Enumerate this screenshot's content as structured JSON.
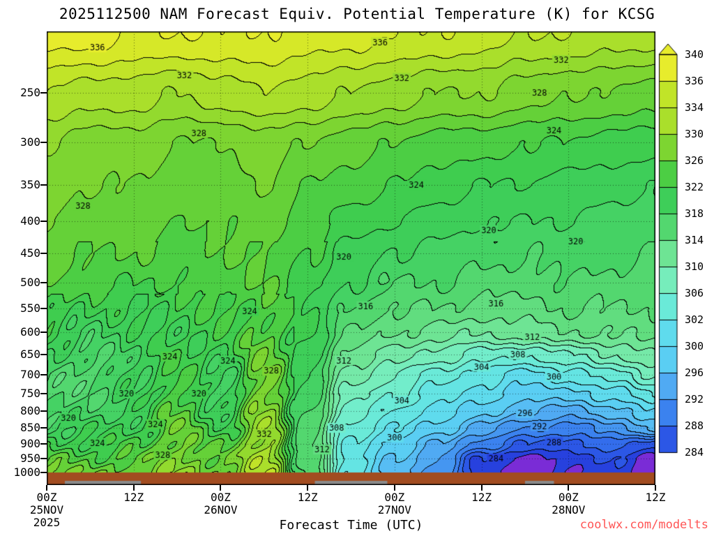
{
  "title": "2025112500 NAM Forecast Equiv. Potential Temperature (K) for KCSG",
  "watermark": "coolwx.com/modelts",
  "watermark_color": "#ff5555",
  "axes": {
    "x_label": "Forecast Time (UTC)",
    "x_ticks": [
      {
        "hour": 0,
        "line1": "00Z",
        "line2": "25NOV",
        "line3": "2025"
      },
      {
        "hour": 12,
        "line1": "12Z"
      },
      {
        "hour": 24,
        "line1": "00Z",
        "line2": "26NOV"
      },
      {
        "hour": 36,
        "line1": "12Z"
      },
      {
        "hour": 48,
        "line1": "00Z",
        "line2": "27NOV"
      },
      {
        "hour": 60,
        "line1": "12Z"
      },
      {
        "hour": 72,
        "line1": "00Z",
        "line2": "28NOV"
      },
      {
        "hour": 84,
        "line1": "12Z"
      }
    ],
    "y_ticks": [
      250,
      300,
      350,
      400,
      450,
      500,
      550,
      600,
      650,
      700,
      750,
      800,
      850,
      900,
      950,
      1000
    ]
  },
  "colorbar": {
    "labels_top_to_bottom": [
      340,
      336,
      334,
      330,
      326,
      322,
      318,
      314,
      310,
      306,
      302,
      300,
      296,
      292,
      288,
      284
    ]
  },
  "chart_data": {
    "type": "heatmap",
    "quantity": "Equivalent Potential Temperature (K)",
    "station": "KCSG",
    "model_run": "2025112500 NAM",
    "x_hours": [
      0,
      6,
      12,
      18,
      24,
      30,
      36,
      42,
      48,
      54,
      60,
      66,
      72,
      78,
      84
    ],
    "y_pressures_hPa": [
      200,
      250,
      300,
      350,
      400,
      450,
      500,
      550,
      600,
      650,
      700,
      750,
      800,
      850,
      900,
      950,
      1000
    ],
    "y_scale": "log-pressure",
    "xlim_hours": [
      0,
      84
    ],
    "contour_interval_K": 2,
    "labeled_contours_K": [
      284,
      288,
      292,
      296,
      300,
      304,
      308,
      312,
      316,
      320,
      324,
      328,
      332,
      336
    ],
    "values_K": [
      [
        339,
        339,
        338,
        338,
        338,
        338,
        337,
        337,
        336,
        336,
        335,
        334,
        334,
        333,
        333
      ],
      [
        334,
        333,
        333,
        332,
        333,
        334,
        333,
        332,
        331,
        330,
        330,
        329,
        328,
        328,
        327
      ],
      [
        330,
        329,
        329,
        328,
        328,
        329,
        328,
        327,
        326,
        325,
        325,
        324,
        324,
        323,
        323
      ],
      [
        329,
        328,
        328,
        327,
        327,
        328,
        326,
        325,
        324,
        323,
        322,
        322,
        321,
        321,
        320
      ],
      [
        328,
        327,
        327,
        326,
        326,
        327,
        325,
        323,
        322,
        321,
        320,
        320,
        320,
        319,
        319
      ],
      [
        327,
        326,
        326,
        325,
        326,
        326,
        324,
        321,
        320,
        319,
        319,
        318,
        319,
        319,
        318
      ],
      [
        326,
        325,
        324,
        324,
        325,
        326,
        323,
        320,
        318,
        318,
        317,
        317,
        318,
        317,
        317
      ],
      [
        324,
        322,
        322,
        323,
        324,
        325,
        322,
        318,
        316,
        316,
        315,
        315,
        316,
        316,
        316
      ],
      [
        322,
        320,
        321,
        322,
        323,
        326,
        322,
        316,
        314,
        313,
        312,
        313,
        314,
        314,
        315
      ],
      [
        320,
        318,
        320,
        323,
        322,
        327,
        321,
        313,
        311,
        309,
        307,
        306,
        308,
        310,
        312
      ],
      [
        318,
        317,
        321,
        324,
        320,
        328,
        320,
        311,
        308,
        305,
        303,
        301,
        303,
        305,
        308
      ],
      [
        317,
        318,
        320,
        325,
        319,
        329,
        319,
        309,
        306,
        303,
        301,
        299,
        299,
        301,
        304
      ],
      [
        318,
        319,
        321,
        326,
        321,
        330,
        318,
        307,
        304,
        301,
        299,
        296,
        295,
        297,
        300
      ],
      [
        320,
        321,
        322,
        327,
        323,
        331,
        317,
        305,
        302,
        299,
        295,
        292,
        291,
        293,
        296
      ],
      [
        323,
        323,
        324,
        328,
        325,
        332,
        316,
        304,
        299,
        296,
        291,
        288,
        287,
        289,
        287
      ],
      [
        326,
        325,
        326,
        329,
        327,
        333,
        317,
        303,
        298,
        294,
        286,
        283,
        285,
        286,
        283
      ],
      [
        329,
        327,
        328,
        330,
        328,
        333,
        318,
        302,
        297,
        293,
        285,
        282,
        284,
        285,
        282
      ]
    ],
    "contour_labels": [
      [
        7,
        212,
        336
      ],
      [
        46,
        208,
        336
      ],
      [
        19,
        235,
        332
      ],
      [
        49,
        237,
        332
      ],
      [
        71,
        222,
        332
      ],
      [
        30,
        870,
        332
      ],
      [
        5,
        378,
        328
      ],
      [
        21,
        290,
        328
      ],
      [
        68,
        250,
        328
      ],
      [
        31,
        690,
        328
      ],
      [
        16,
        938,
        328
      ],
      [
        28,
        555,
        324
      ],
      [
        51,
        350,
        324
      ],
      [
        70,
        287,
        324
      ],
      [
        17,
        655,
        324
      ],
      [
        25,
        665,
        324
      ],
      [
        15,
        838,
        324
      ],
      [
        7,
        898,
        324
      ],
      [
        41,
        455,
        320
      ],
      [
        61,
        413,
        320
      ],
      [
        73,
        430,
        320
      ],
      [
        11,
        750,
        320
      ],
      [
        21,
        750,
        320
      ],
      [
        3,
        820,
        320
      ],
      [
        44,
        545,
        316
      ],
      [
        62,
        540,
        316
      ],
      [
        41,
        665,
        312
      ],
      [
        67,
        610,
        312
      ],
      [
        38,
        920,
        312
      ],
      [
        40,
        850,
        308
      ],
      [
        65,
        650,
        308
      ],
      [
        49,
        770,
        304
      ],
      [
        60,
        680,
        304
      ],
      [
        48,
        880,
        300
      ],
      [
        70,
        705,
        300
      ],
      [
        66,
        805,
        296
      ],
      [
        68,
        845,
        292
      ],
      [
        70,
        895,
        288
      ],
      [
        62,
        950,
        284
      ]
    ],
    "palette_anchors": [
      [
        282,
        "#7a2cd6"
      ],
      [
        284,
        "#2436da"
      ],
      [
        288,
        "#2f62ea"
      ],
      [
        292,
        "#3f8cf0"
      ],
      [
        296,
        "#55b4f4"
      ],
      [
        300,
        "#5cd6f2"
      ],
      [
        304,
        "#66e8de"
      ],
      [
        308,
        "#76efc4"
      ],
      [
        312,
        "#74e79e"
      ],
      [
        316,
        "#5ada74"
      ],
      [
        320,
        "#3ecf5e"
      ],
      [
        324,
        "#3fcc4a"
      ],
      [
        328,
        "#72d232"
      ],
      [
        332,
        "#9edc2c"
      ],
      [
        336,
        "#cde626"
      ],
      [
        340,
        "#f0ee2e"
      ]
    ],
    "terrain_color": "#a24c20",
    "surface_patch_color": "#8a8a8a",
    "surface_patches": [
      [
        2.5,
        13
      ],
      [
        37,
        47
      ],
      [
        66,
        70
      ]
    ]
  }
}
